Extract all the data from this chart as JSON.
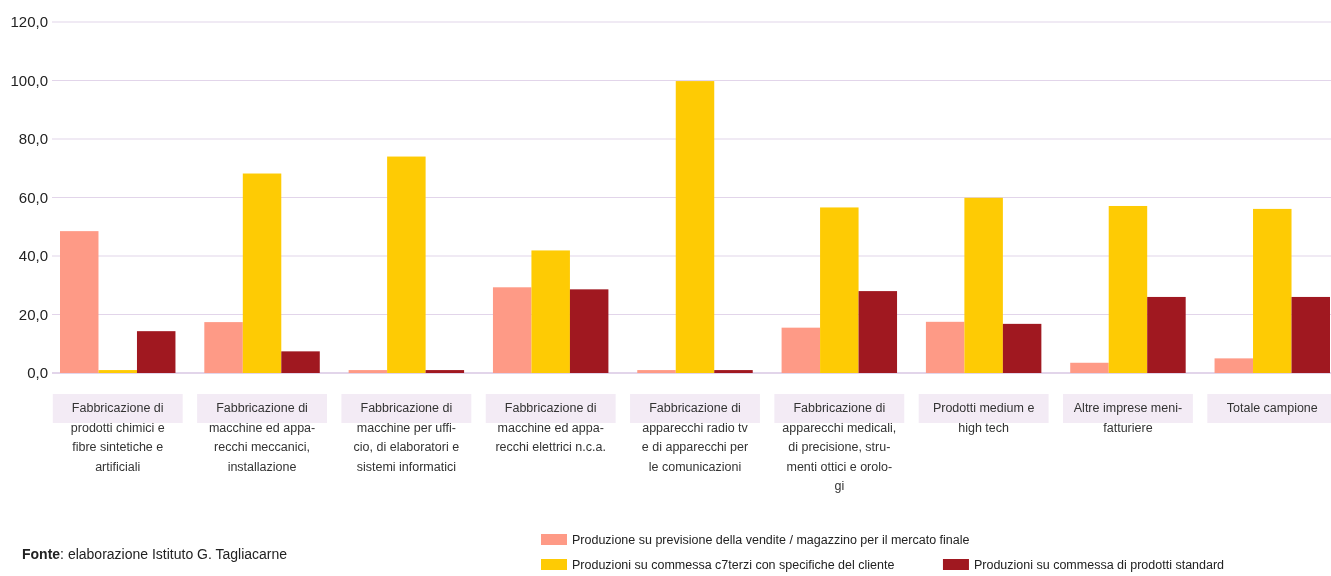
{
  "chart_data": {
    "type": "bar",
    "categories": [
      "Fabbricazione di\nprodotti chimici e\nfibre sintetiche e\nartificiali",
      "Fabbricazione di\nmacchine ed appa-\nrecchi meccanici,\ninstallazione",
      "Fabbricazione di\nmacchine per uffi-\ncio, di elaboratori e\nsistemi informatici",
      "Fabbricazione di\nmacchine ed appa-\nrecchi elettrici n.c.a.",
      "Fabbricazione di\napparecchi radio tv\ne di apparecchi per\nle comunicazioni",
      "Fabbricazione di\napparecchi medicali,\ndi precisione, stru-\nmenti ottici e orolo-\ngi",
      "Prodotti medium e\nhigh tech",
      "Altre imprese meni-\nfatturiere",
      "Totale campione"
    ],
    "series": [
      {
        "name": "Produzione su previsione della vendite / magazzino per il mercato finale",
        "color": "#fe9a86",
        "values": [
          48.5,
          17.4,
          1.0,
          29.3,
          1.0,
          15.5,
          17.5,
          3.5,
          5.0
        ]
      },
      {
        "name": "Produzioni su commessa c7terzi con specifiche del cliente",
        "color": "#fecb04",
        "values": [
          1.0,
          68.2,
          74.0,
          41.9,
          99.8,
          56.6,
          59.9,
          57.1,
          56.1
        ]
      },
      {
        "name": "Produzioni su commessa di prodotti standard",
        "color": "#a01820",
        "values": [
          14.3,
          7.4,
          1.0,
          28.6,
          1.0,
          28.0,
          16.8,
          26.0,
          26.0
        ]
      }
    ],
    "ylim": [
      0,
      120
    ],
    "yticks": [
      {
        "value": 0,
        "label": "0,0"
      },
      {
        "value": 20,
        "label": "20,0"
      },
      {
        "value": 40,
        "label": "40,0"
      },
      {
        "value": 60,
        "label": "60,0"
      },
      {
        "value": 80,
        "label": "80,0"
      },
      {
        "value": 100,
        "label": "100,0"
      },
      {
        "value": 120,
        "label": "120,0"
      }
    ],
    "grid": "y",
    "legend": "bottom right",
    "annotations": [
      "Fonte: elaborazione Istituto G. Tagliacarne"
    ]
  }
}
